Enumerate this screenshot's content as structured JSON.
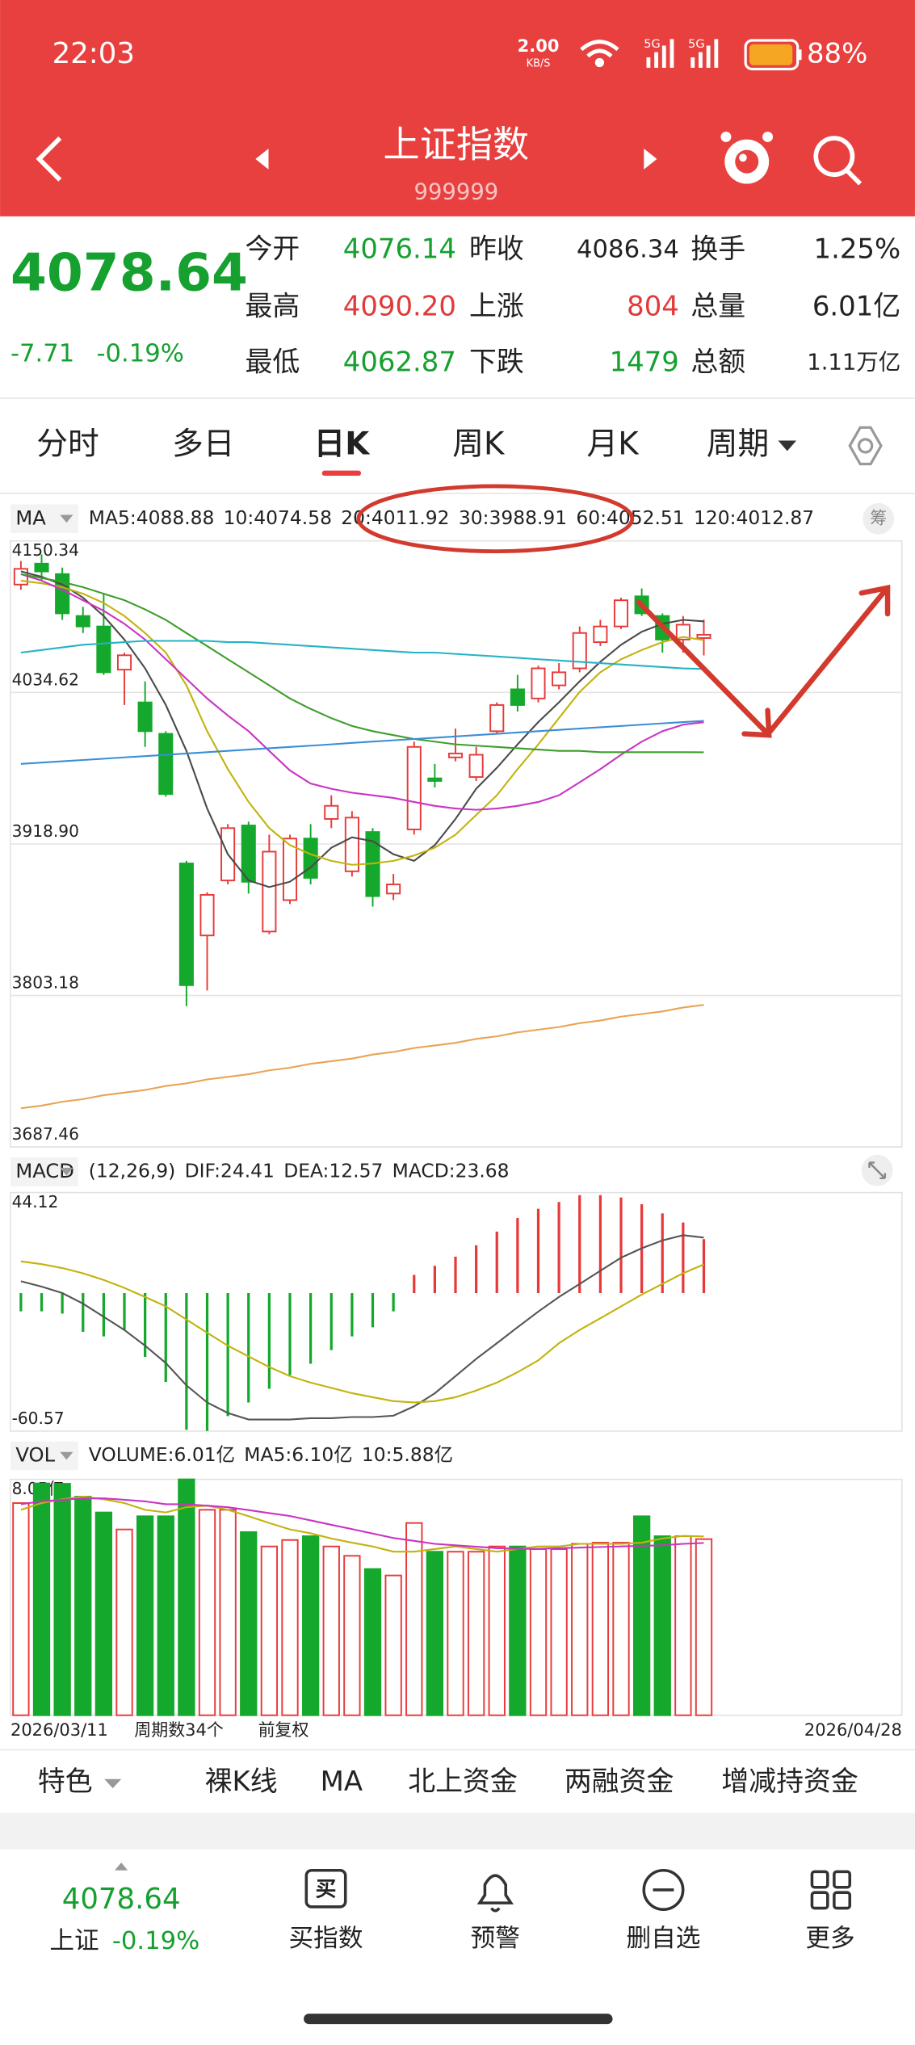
{
  "status_bar": {
    "time": "22:03",
    "net_speed": "2.00",
    "net_unit": "KB/S",
    "signal_1": "5G",
    "signal_2": "5G",
    "battery": "88%"
  },
  "header": {
    "title": "上证指数",
    "code": "999999"
  },
  "quote": {
    "price": "4078.64",
    "change": "-7.71",
    "change_pct": "-0.19%",
    "fields": [
      {
        "label": "今开",
        "value": "4076.14"
      },
      {
        "label": "昨收",
        "value": "4086.34"
      },
      {
        "label": "换手",
        "value": "1.25%"
      },
      {
        "label": "最高",
        "value": "4090.20"
      },
      {
        "label": "上涨",
        "value": "804"
      },
      {
        "label": "总量",
        "value": "6.01亿"
      },
      {
        "label": "最低",
        "value": "4062.87"
      },
      {
        "label": "下跌",
        "value": "1479"
      },
      {
        "label": "总额",
        "value": "1.11万亿"
      }
    ]
  },
  "tabs": [
    "分时",
    "多日",
    "日K",
    "周K",
    "月K",
    "周期"
  ],
  "selected_tab": 2,
  "chart_data": [
    {
      "type": "candlestick",
      "indicator": "MA",
      "categories": [
        "2026/03/11",
        null,
        null,
        null,
        null,
        null,
        null,
        null,
        null,
        null,
        null,
        null,
        null,
        null,
        null,
        null,
        null,
        null,
        null,
        null,
        null,
        null,
        null,
        null,
        null,
        null,
        null,
        null,
        null,
        null,
        null,
        null,
        null,
        "2026/04/28"
      ],
      "open": [
        4117,
        4133,
        4125,
        4093,
        4085,
        4052,
        4027,
        4003,
        3904,
        3849,
        3891,
        3933,
        3852,
        3876,
        3923,
        3938,
        3898,
        3928,
        3881,
        3930,
        3969,
        3985,
        3970,
        4005,
        4037,
        4030,
        4040,
        4053,
        4073,
        4085,
        4108,
        4093,
        4075,
        4076.14
      ],
      "high": [
        4135,
        4140,
        4130,
        4100,
        4110,
        4065,
        4043,
        4005,
        3906,
        3882,
        3934,
        3936,
        3926,
        3926,
        3934,
        3956,
        3944,
        3931,
        3896,
        3997,
        3980,
        4007,
        3993,
        4027,
        4048,
        4055,
        4057,
        4085,
        4090,
        4107,
        4114,
        4095,
        4093,
        4090.2
      ],
      "low": [
        4113,
        4120,
        4090,
        4080,
        4048,
        4025,
        3993,
        3955,
        3795,
        3807,
        3888,
        3881,
        3850,
        3873,
        3888,
        3931,
        3894,
        3871,
        3876,
        3926,
        3962,
        3982,
        3967,
        4003,
        4020,
        4027,
        4037,
        4050,
        4070,
        4083,
        4093,
        4065,
        4065,
        4062.87
      ],
      "close": [
        4129,
        4127,
        4095,
        4085,
        4050,
        4063,
        4005,
        3957,
        3811,
        3880,
        3931,
        3890,
        3913,
        3923,
        3893,
        3948,
        3939,
        3879,
        3888,
        3993,
        3967,
        3988,
        3987,
        4025,
        4025,
        4053,
        4050,
        4080,
        4085,
        4105,
        4095,
        4075,
        4086.34,
        4078.64
      ],
      "series": [
        {
          "name": "MA5:4088.88",
          "color": "#4a4a4a",
          "values": [
            4127,
            4123,
            4117,
            4107,
            4093,
            4075,
            4053,
            4025,
            3990,
            3946,
            3911,
            3891,
            3886,
            3890,
            3901,
            3916,
            3924,
            3921,
            3911,
            3906,
            3918,
            3938,
            3961,
            3977,
            3995,
            4012,
            4027,
            4043,
            4058,
            4071,
            4081,
            4087,
            4090,
            4088.88
          ]
        },
        {
          "name": "10:4074.58",
          "color": "#c2b30c",
          "values": [
            4120,
            4118,
            4115,
            4110,
            4103,
            4093,
            4080,
            4065,
            4040,
            4005,
            3976,
            3951,
            3931,
            3918,
            3911,
            3906,
            3903,
            3904,
            3906,
            3910,
            3916,
            3926,
            3941,
            3956,
            3976,
            3995,
            4015,
            4035,
            4050,
            4060,
            4067,
            4073,
            4077,
            4074.58
          ]
        },
        {
          "name": "20:4011.92",
          "color": "#c934c4",
          "values": [
            4125,
            4120,
            4113,
            4105,
            4097,
            4087,
            4075,
            4060,
            4045,
            4030,
            4017,
            4005,
            3990,
            3975,
            3965,
            3961,
            3958,
            3956,
            3954,
            3951,
            3948,
            3946,
            3945,
            3946,
            3948,
            3951,
            3956,
            3966,
            3976,
            3987,
            3997,
            4005,
            4010,
            4011.92
          ]
        },
        {
          "name": "30:3988.91",
          "color": "#3f9e2c",
          "values": [
            4125,
            4122,
            4119,
            4115,
            4110,
            4105,
            4098,
            4090,
            4080,
            4070,
            4060,
            4050,
            4040,
            4030,
            4022,
            4015,
            4009,
            4005,
            4002,
            3999,
            3997,
            3995,
            3994,
            3993,
            3992,
            3991,
            3990,
            3990,
            3989,
            3989,
            3989,
            3989,
            3989,
            3988.91
          ]
        },
        {
          "name": "60:4052.51",
          "color": "#25b3c6",
          "values": [
            4065,
            4067,
            4069,
            4071,
            4072,
            4073,
            4074,
            4074,
            4074,
            4074,
            4073,
            4073,
            4072,
            4071,
            4070,
            4069,
            4068,
            4067,
            4066,
            4065,
            4065,
            4064,
            4063,
            4062,
            4061,
            4060,
            4059,
            4058,
            4057,
            4056,
            4055,
            4054,
            4053,
            4052.51
          ]
        },
        {
          "name": "120:4012.87",
          "color": "#3a8ed6",
          "values": [
            3980,
            3981,
            3982,
            3983,
            3984,
            3985,
            3986,
            3987,
            3988,
            3989,
            3990,
            3991,
            3992,
            3993,
            3994,
            3995,
            3996,
            3997,
            3998,
            3999,
            4000,
            4001,
            4002,
            4003,
            4004,
            4005,
            4006,
            4007,
            4008,
            4009,
            4010,
            4011,
            4012,
            4012.87
          ]
        },
        {
          "color": "#e8a455",
          "values": [
            3717,
            3719,
            3722,
            3724,
            3727,
            3729,
            3731,
            3734,
            3736,
            3739,
            3741,
            3743,
            3746,
            3748,
            3751,
            3753,
            3755,
            3758,
            3760,
            3763,
            3765,
            3767,
            3770,
            3772,
            3775,
            3777,
            3779,
            3782,
            3784,
            3787,
            3789,
            3791,
            3794,
            3796
          ]
        }
      ],
      "ylim": [
        3687.46,
        4150.34
      ],
      "yticks": [
        4150.34,
        4034.62,
        {
          "value": 3918.9,
          "label": "3918.90"
        },
        3803.18,
        3687.46
      ],
      "up_color": "#e8393a",
      "down_color": "#14a82c",
      "grid": true,
      "period_count": "周期数34个",
      "adjustment": "前复权"
    },
    {
      "type": "macd",
      "indicator": "MACD",
      "params": "(12,26,9)",
      "name": "MACD:23.68",
      "values": [
        -8,
        -8,
        -9,
        -17,
        -19,
        -16,
        -28,
        -39,
        -60,
        -60.5,
        -54,
        -48,
        -42,
        -36,
        -31,
        -25,
        -19,
        -15,
        -8,
        8,
        12,
        16,
        21,
        27,
        33,
        37,
        40,
        43,
        43,
        42,
        39,
        35,
        31,
        23.68
      ],
      "series": [
        {
          "name": "DIF:24.41",
          "color": "#555555",
          "values": [
            5.2,
            2.9,
            0,
            -4.6,
            -10.4,
            -16.2,
            -23.1,
            -30.7,
            -40.5,
            -48,
            -52.6,
            -55.5,
            -55.5,
            -55.5,
            -54.9,
            -54.9,
            -54.4,
            -54.4,
            -53.8,
            -49.7,
            -44,
            -36.4,
            -28.9,
            -22,
            -15,
            -8.1,
            -1.7,
            4,
            9.8,
            15.6,
            19.7,
            23.1,
            25.4,
            24.41
          ]
        },
        {
          "name": "DEA:12.57",
          "color": "#c2b30c",
          "values": [
            13.9,
            12.7,
            11,
            8.7,
            5.8,
            2.3,
            -1.7,
            -5.8,
            -11.6,
            -17.4,
            -23.1,
            -27.8,
            -32.4,
            -36.4,
            -39.3,
            -41.6,
            -43.9,
            -45.7,
            -47.4,
            -48,
            -47.4,
            -45.7,
            -42.8,
            -39.3,
            -34.7,
            -29.5,
            -22,
            -16.2,
            -11,
            -5.8,
            -0.6,
            4,
            8.7,
            12.57
          ]
        }
      ],
      "name_color": "#c934c4",
      "ylim": [
        -60.57,
        44.12
      ],
      "yticks": [
        44.12,
        -60.57
      ],
      "up_color": "#e8393a",
      "down_color": "#14a82c",
      "grid": false
    },
    {
      "type": "bar",
      "indicator": "VOL",
      "name": "VOLUME:6.01亿",
      "values": [
        7.24,
        7.91,
        7.9,
        7.46,
        6.92,
        6.34,
        6.79,
        6.79,
        8.05,
        7.01,
        7.01,
        6.25,
        5.76,
        5.98,
        6.11,
        5.76,
        5.44,
        4.99,
        4.77,
        6.56,
        5.58,
        5.58,
        5.58,
        5.76,
        5.76,
        5.67,
        5.67,
        5.85,
        5.89,
        5.89,
        6.79,
        6.11,
        6.11,
        6.01
      ],
      "series": [
        {
          "name": "MA5:6.10亿",
          "color": "#c2b30c",
          "values": [
            7.01,
            7.24,
            7.37,
            7.46,
            7.37,
            7.24,
            7.01,
            6.92,
            7.1,
            7.15,
            7.01,
            6.79,
            6.56,
            6.34,
            6.21,
            6.03,
            5.89,
            5.76,
            5.58,
            5.58,
            5.67,
            5.76,
            5.67,
            5.58,
            5.67,
            5.76,
            5.76,
            5.85,
            5.85,
            5.85,
            5.89,
            6.03,
            6.12,
            6.1
          ]
        },
        {
          "name": "10:5.88亿",
          "color": "#c934c4",
          "values": [
            7.2,
            7.3,
            7.35,
            7.4,
            7.4,
            7.35,
            7.3,
            7.2,
            7.2,
            7.15,
            7.1,
            7,
            6.9,
            6.8,
            6.65,
            6.5,
            6.35,
            6.2,
            6.05,
            5.95,
            5.85,
            5.8,
            5.75,
            5.7,
            5.68,
            5.68,
            5.7,
            5.72,
            5.74,
            5.76,
            5.78,
            5.8,
            5.85,
            5.88
          ]
        }
      ],
      "name_color": "#333333",
      "ylim": [
        0,
        8.05
      ],
      "yticks": [
        {
          "value": 8.05,
          "label": "8.05亿"
        }
      ],
      "up_color": "#e8393a",
      "down_color": "#14a82c",
      "grid": false
    }
  ],
  "indicator_tabs": [
    "特色",
    "裸K线",
    "MA",
    "北上资金",
    "两融资金",
    "增减持资金"
  ],
  "footer": {
    "price": "4078.64",
    "name": "上证",
    "change_pct": "-0.19%",
    "actions": [
      "买指数",
      "预警",
      "删自选",
      "更多"
    ]
  }
}
